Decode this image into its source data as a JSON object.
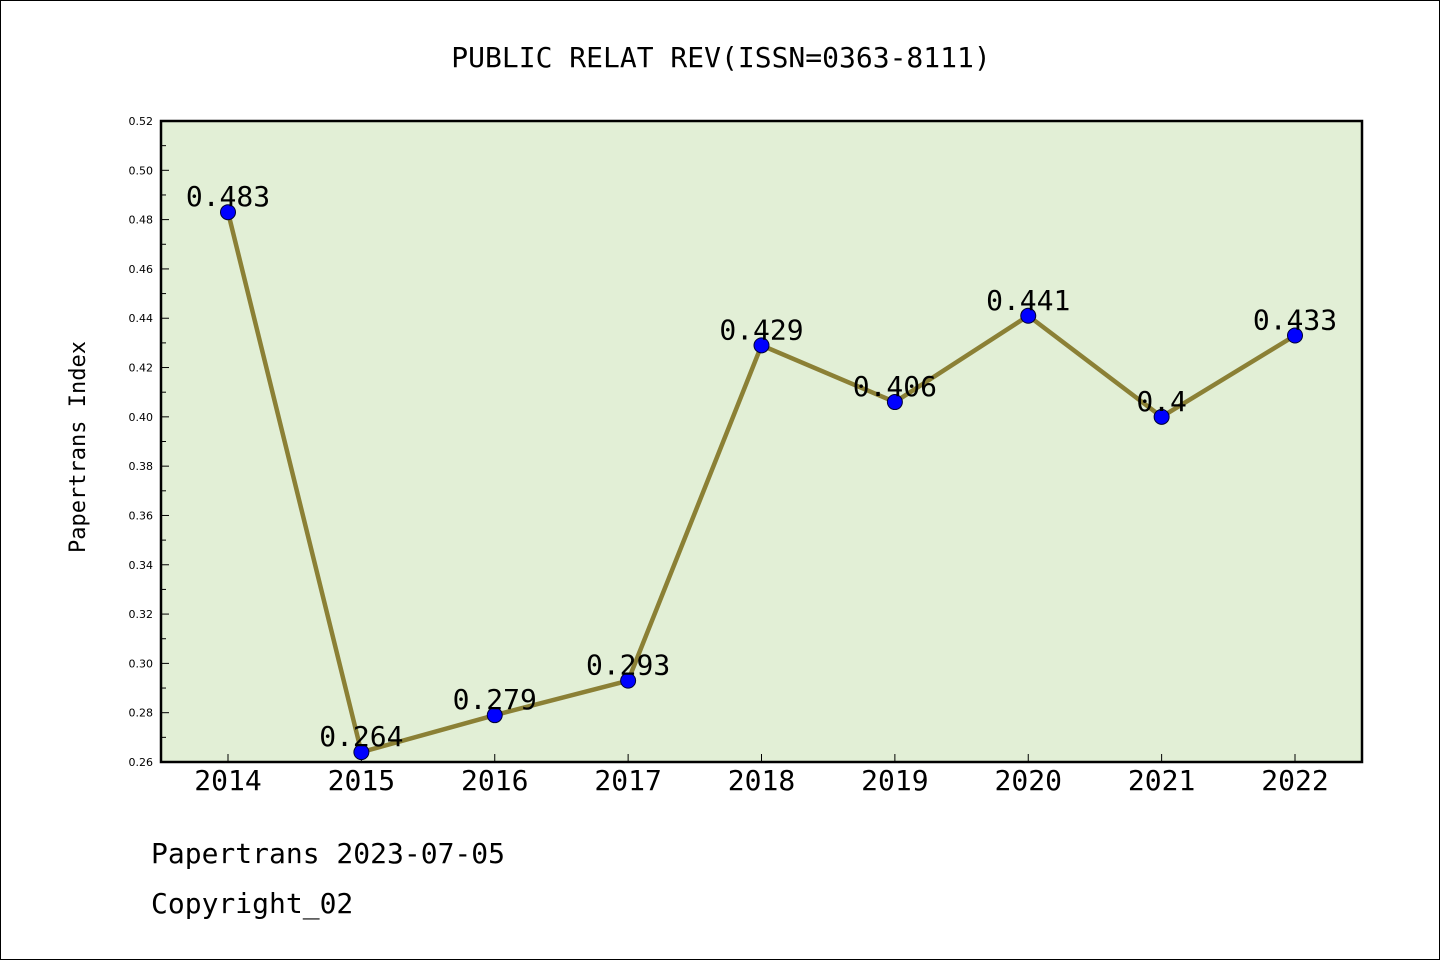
{
  "chart_data": {
    "type": "line",
    "title": "PUBLIC RELAT REV(ISSN=0363-8111)",
    "xlabel": "",
    "ylabel": "Papertrans Index",
    "categories": [
      "2014",
      "2015",
      "2016",
      "2017",
      "2018",
      "2019",
      "2020",
      "2021",
      "2022"
    ],
    "series": [
      {
        "values": [
          0.483,
          0.264,
          0.279,
          0.293,
          0.429,
          0.406,
          0.441,
          0.4,
          0.433
        ]
      }
    ],
    "data_labels": [
      "0.483",
      "0.264",
      "0.279",
      "0.293",
      "0.429",
      "0.406",
      "0.441",
      "0.4",
      "0.433"
    ],
    "ylim": [
      0.26,
      0.52
    ],
    "yticks": [
      "0.26",
      "0.28",
      "0.30",
      "0.32",
      "0.34",
      "0.36",
      "0.38",
      "0.40",
      "0.42",
      "0.44",
      "0.46",
      "0.48",
      "0.50",
      "0.52"
    ],
    "grid": false,
    "colors": {
      "line": "#8b8035",
      "marker": "#0000ff",
      "plot_background": "#e2efd6"
    }
  },
  "footer": {
    "line1": "Papertrans 2023-07-05",
    "line2": "Copyright_02"
  }
}
